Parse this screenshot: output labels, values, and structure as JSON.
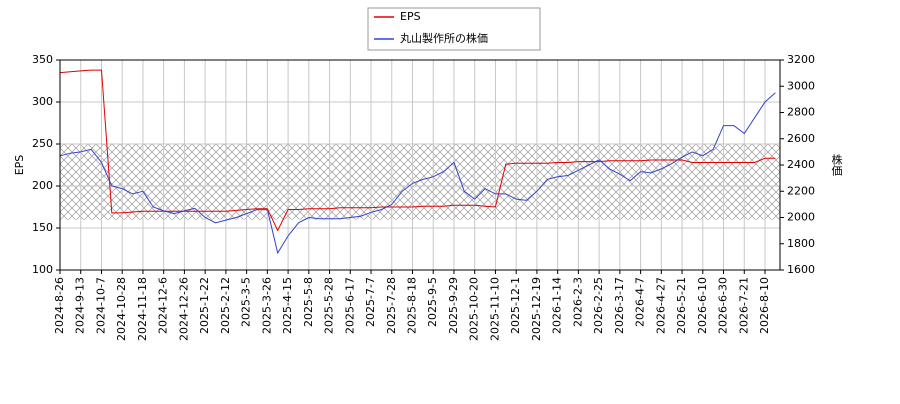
{
  "chart_data": {
    "type": "line",
    "categories": [
      "2024-8-26",
      null,
      "2024-9-13",
      null,
      "2024-10-7",
      null,
      "2024-10-28",
      null,
      "2024-11-18",
      null,
      "2024-12-6",
      null,
      "2024-12-26",
      null,
      "2025-1-22",
      null,
      "2025-2-12",
      null,
      "2025-3-5",
      null,
      "2025-3-26",
      null,
      "2025-4-15",
      null,
      "2025-5-8",
      null,
      "2025-5-28",
      null,
      "2025-6-17",
      null,
      "2025-7-7",
      null,
      "2025-7-28",
      null,
      "2025-8-18",
      null,
      "2025-9-5",
      null,
      "2025-9-29",
      null,
      "2025-10-20",
      null,
      "2025-11-10",
      null,
      "2025-12-1",
      null,
      "2025-12-19",
      null,
      "2026-1-14",
      null,
      "2026-2-3",
      null,
      "2026-2-25",
      null,
      "2026-3-17",
      null,
      "2026-4-7",
      null,
      "2026-4-27",
      null,
      "2026-5-21",
      null,
      "2026-6-10",
      null,
      "2026-6-30",
      null,
      "2026-7-21",
      null,
      "2026-8-10",
      null
    ],
    "series": [
      {
        "name": "EPS",
        "color": "#e00000",
        "axis": "y",
        "values": [
          335,
          336,
          337,
          338,
          338,
          168,
          168,
          169,
          170,
          170,
          170,
          170,
          170,
          170,
          170,
          170,
          170,
          171,
          172,
          173,
          173,
          147,
          172,
          172,
          173,
          173,
          173,
          174,
          174,
          174,
          174,
          175,
          175,
          175,
          175,
          176,
          176,
          176,
          177,
          177,
          177,
          176,
          175,
          226,
          227,
          227,
          227,
          227,
          228,
          228,
          229,
          229,
          229,
          230,
          230,
          230,
          230,
          231,
          231,
          231,
          231,
          228,
          228,
          228,
          228,
          228,
          228,
          228,
          233,
          233
        ]
      },
      {
        "name": "丸山製作所の株価",
        "color": "#3344cc",
        "axis": "y2",
        "values": [
          2470,
          2490,
          2500,
          2520,
          2420,
          2240,
          2220,
          2180,
          2200,
          2080,
          2050,
          2030,
          2050,
          2070,
          2000,
          1960,
          1980,
          2000,
          2030,
          2060,
          2060,
          1730,
          1860,
          1960,
          2000,
          1990,
          1990,
          1990,
          2000,
          2010,
          2040,
          2060,
          2100,
          2200,
          2260,
          2290,
          2310,
          2350,
          2420,
          2200,
          2140,
          2220,
          2180,
          2180,
          2140,
          2130,
          2200,
          2290,
          2310,
          2320,
          2360,
          2400,
          2440,
          2370,
          2330,
          2280,
          2350,
          2340,
          2370,
          2410,
          2460,
          2500,
          2470,
          2520,
          2700,
          2700,
          2640,
          2760,
          2880,
          2950
        ]
      }
    ],
    "shade_range": [
      160,
      250
    ],
    "ylabel": "EPS",
    "y2label": "株価",
    "ylim": [
      100,
      350
    ],
    "yticks": [
      100,
      150,
      200,
      250,
      300,
      350
    ],
    "y2lim": [
      1600,
      3200
    ],
    "y2ticks": [
      1600,
      1800,
      2000,
      2200,
      2400,
      2600,
      2800,
      3000,
      3200
    ],
    "grid": true,
    "legend": "top"
  }
}
